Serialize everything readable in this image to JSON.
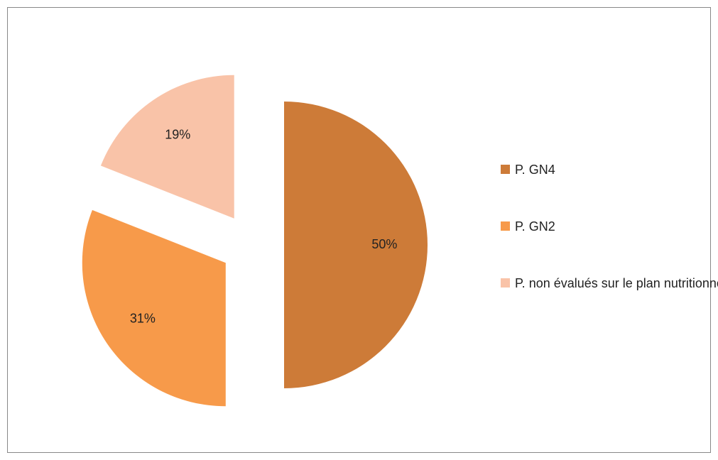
{
  "chart_data": {
    "type": "pie",
    "categories": [
      "P. GN4",
      "P. GN2",
      "P. non évalués sur le plan nutritionnel"
    ],
    "values": [
      50,
      31,
      19
    ],
    "value_labels": [
      "50%",
      "31%",
      "19%"
    ],
    "colors": [
      "#cd7b38",
      "#f79a4a",
      "#f9c3a8"
    ],
    "legend": "right"
  }
}
